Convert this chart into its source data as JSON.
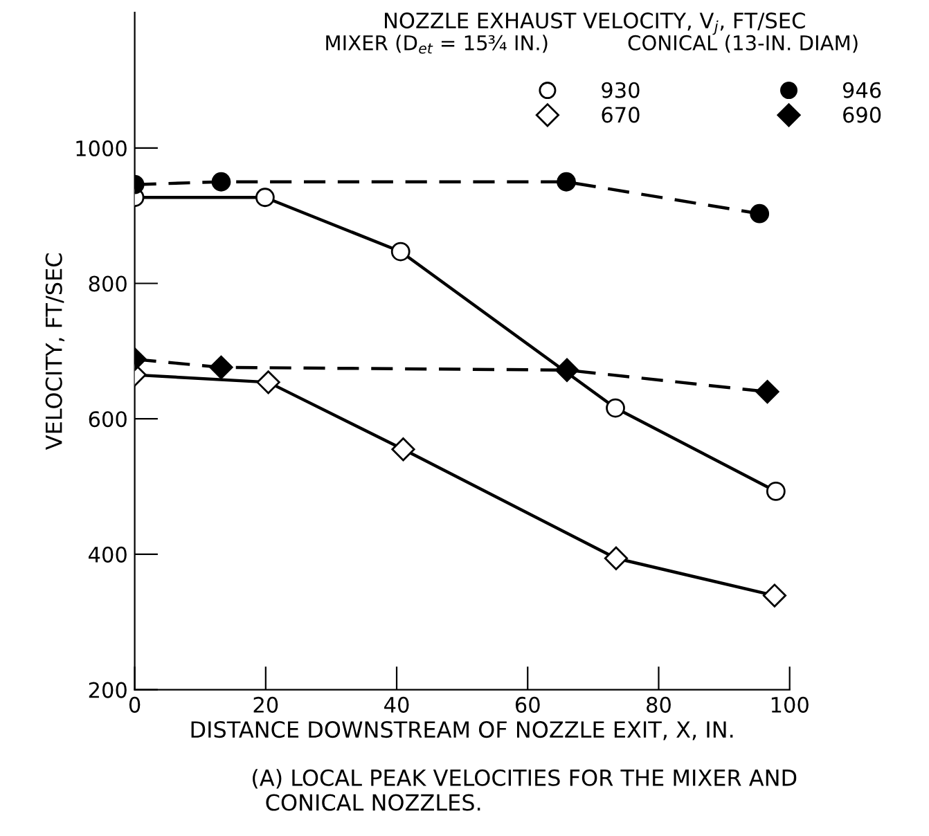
{
  "chart_data": {
    "type": "line",
    "xlabel": "DISTANCE DOWNSTREAM OF NOZZLE EXIT, X, IN.",
    "ylabel": "VELOCITY, FT/SEC",
    "legend_title": "NOZZLE EXHAUST VELOCITY, V$_{j}$, FT/SEC",
    "annotations": [
      "MIXER (D$_{et}$ = 15¾ IN.)",
      "CONICAL (13-IN. DIAM)",
      "(A) LOCAL PEAK VELOCITIES FOR THE MIXER AND\n  CONICAL NOZZLES."
    ],
    "xlim": [
      0,
      100
    ],
    "xticks": [
      0,
      20,
      40,
      60,
      80,
      100
    ],
    "ylim": [
      200,
      1200
    ],
    "yticks": [
      200,
      400,
      600,
      800,
      1000
    ],
    "grid": false,
    "legend": "top right",
    "series": [
      {
        "name": "930",
        "color": "#000000",
        "marker": "circle",
        "line_style": "solid",
        "x": [
          0,
          19.9,
          40.6,
          73.4,
          97.9
        ],
        "values": [
          927,
          927,
          847,
          616,
          493
        ]
      },
      {
        "name": "670",
        "color": "#000000",
        "marker": "diamond",
        "line_style": "solid",
        "x": [
          0,
          20.4,
          41,
          73.5,
          97.7
        ],
        "values": [
          665,
          654,
          555,
          394,
          339
        ]
      },
      {
        "name": "946",
        "color": "#000000",
        "marker": "circle",
        "line_style": "dashed",
        "x": [
          0,
          13.2,
          65.9,
          95.4
        ],
        "values": [
          946,
          950,
          950,
          903
        ]
      },
      {
        "name": "690",
        "color": "#000000",
        "marker": "diamond",
        "line_style": "dashed",
        "x": [
          0,
          13.2,
          66,
          96.6
        ],
        "values": [
          688,
          676,
          672,
          640
        ]
      }
    ]
  }
}
